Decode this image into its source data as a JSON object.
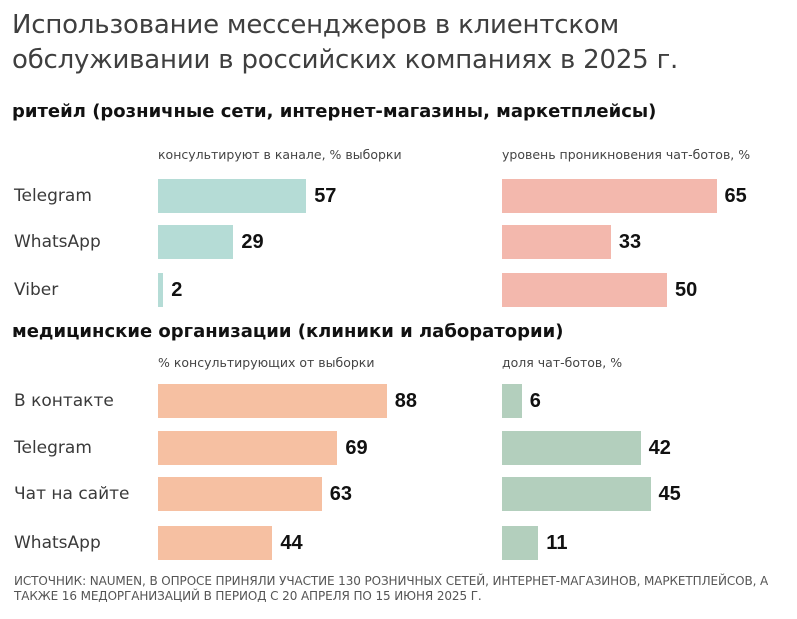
{
  "title": "Использование мессенджеров в клиентском обслуживании в российских компаниях в 2025 г.",
  "source": "ИСТОЧНИК: NAUMEN, В ОПРОСЕ ПРИНЯЛИ УЧАСТИЕ 130 РОЗНИЧНЫХ СЕТЕЙ, ИНТЕРНЕТ-МАГАЗИНОВ, МАРКЕТПЛЕЙСОВ, А ТАКЖЕ 16 МЕДОРГАНИЗАЦИЙ В ПЕРИОД С 20 АПРЕЛЯ ПО 15 ИЮНЯ 2025 Г.",
  "colors": {
    "teal": "#b5dcd6",
    "pink": "#f3b8ad",
    "peach": "#f6c0a2",
    "sage": "#b3cfbd"
  },
  "chart_data": [
    {
      "type": "bar",
      "section": "ритейл (розничные сети, интернет-магазины, маркетплейсы)",
      "title": "консультируют в канале, % выборки",
      "categories": [
        "Telegram",
        "WhatsApp",
        "Viber"
      ],
      "values": [
        57,
        29,
        2
      ],
      "color": "#b5dcd6"
    },
    {
      "type": "bar",
      "title": "уровень проникновения чат-ботов, %",
      "categories": [
        "Telegram",
        "WhatsApp",
        "Viber"
      ],
      "values": [
        65,
        33,
        50
      ],
      "color": "#f3b8ad"
    },
    {
      "type": "bar",
      "section": "медицинские организации (клиники и лаборатории)",
      "title": "% консультирующих от выборки",
      "categories": [
        "В контакте",
        "Telegram",
        "Чат на сайте",
        "WhatsApp"
      ],
      "values": [
        88,
        69,
        63,
        44
      ],
      "color": "#f6c0a2"
    },
    {
      "type": "bar",
      "title": "доля чат-ботов, %",
      "categories": [
        "В контакте",
        "Telegram",
        "Чат на сайте",
        "WhatsApp"
      ],
      "values": [
        6,
        42,
        45,
        11
      ],
      "color": "#b3cfbd"
    }
  ]
}
